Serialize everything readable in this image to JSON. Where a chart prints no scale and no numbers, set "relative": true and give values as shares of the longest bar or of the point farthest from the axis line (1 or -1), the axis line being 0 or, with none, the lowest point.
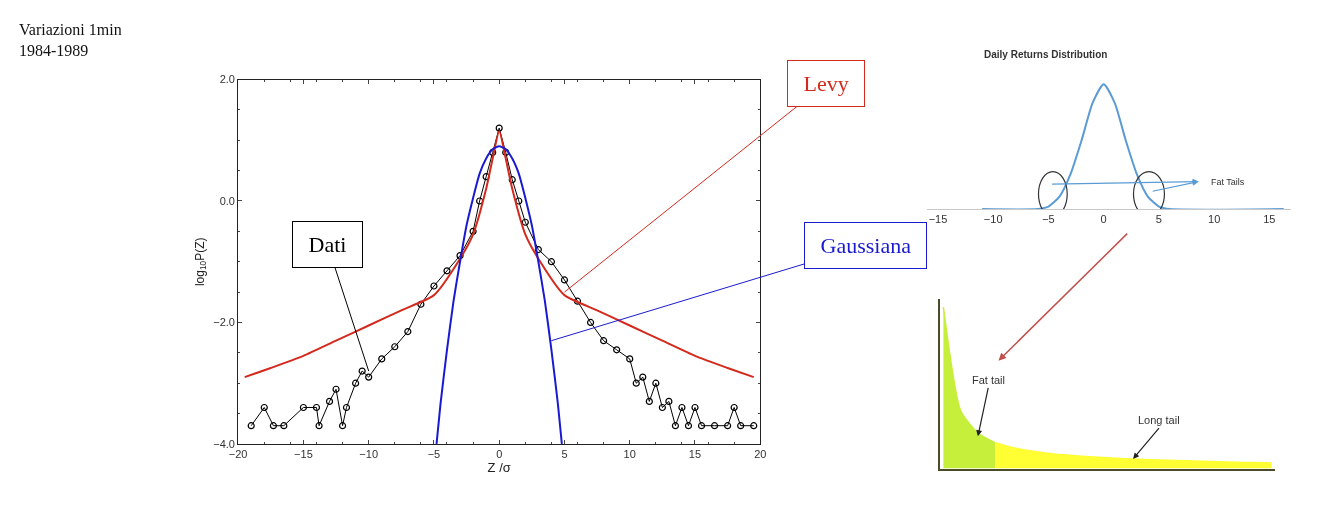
{
  "chart_data": [
    {
      "type": "line",
      "title": "Variazioni 1min\n1984-1989",
      "xlabel": "Z /σ",
      "ylabel": "log$_{10}$P(Z)",
      "xlim": [
        -20,
        20
      ],
      "ylim": [
        -4,
        2
      ],
      "xticks": [
        -20,
        -15,
        -10,
        -5,
        0,
        5,
        10,
        15,
        20
      ],
      "yticks": [
        {
          "value": -4,
          "label": "−4.0"
        },
        {
          "value": -2,
          "label": "−2.0"
        },
        {
          "value": 0,
          "label": "0.0"
        },
        {
          "value": 2,
          "label": "2.0"
        }
      ],
      "legend": false,
      "series": [
        {
          "name": "Dati",
          "type": "line",
          "marker": "circle",
          "color": "#000000",
          "x": [
            -19,
            -18,
            -17.3,
            -16.5,
            -15,
            -14,
            -13.8,
            -13,
            -12.5,
            -12,
            -11.7,
            -11,
            -10.5,
            -10,
            -9,
            -8,
            -7,
            -6,
            -5,
            -4,
            -3,
            -2,
            -1.5,
            -1,
            -0.5,
            0,
            0.5,
            1,
            1.5,
            2,
            3,
            4,
            5,
            6,
            7,
            8,
            9,
            10,
            10.5,
            11,
            11.5,
            12,
            12.5,
            13,
            13.5,
            14,
            14.5,
            15,
            15.5,
            16.5,
            17.5,
            18,
            18.5,
            19.5
          ],
          "values": [
            -3.7,
            -3.4,
            -3.7,
            -3.7,
            -3.4,
            -3.4,
            -3.7,
            -3.3,
            -3.1,
            -3.7,
            -3.4,
            -3.0,
            -2.8,
            -2.9,
            -2.6,
            -2.4,
            -2.15,
            -1.7,
            -1.4,
            -1.15,
            -0.9,
            -0.5,
            0.0,
            0.4,
            0.8,
            1.2,
            0.8,
            0.35,
            0.0,
            -0.35,
            -0.8,
            -1.0,
            -1.3,
            -1.65,
            -2.0,
            -2.3,
            -2.45,
            -2.6,
            -3.0,
            -2.9,
            -3.3,
            -3.0,
            -3.4,
            -3.3,
            -3.7,
            -3.4,
            -3.7,
            -3.4,
            -3.7,
            -3.7,
            -3.7,
            -3.4,
            -3.7,
            -3.7
          ]
        },
        {
          "name": "Levy",
          "type": "line",
          "color": "#d42a1e",
          "x": [
            -19.5,
            -17.5,
            -15,
            -12.5,
            -10,
            -7.5,
            -5,
            -3,
            -2,
            -1,
            -0.5,
            0,
            0.5,
            1,
            2,
            3,
            5,
            7.5,
            10,
            12.5,
            15,
            17.5,
            19.5
          ],
          "values": [
            -2.9,
            -2.75,
            -2.55,
            -2.3,
            -2.05,
            -1.8,
            -1.55,
            -0.95,
            -0.55,
            0.2,
            0.7,
            1.15,
            0.7,
            0.2,
            -0.55,
            -0.95,
            -1.55,
            -1.8,
            -2.05,
            -2.3,
            -2.55,
            -2.75,
            -2.9
          ]
        },
        {
          "name": "Gaussiana",
          "type": "line",
          "color": "#1a1ad0",
          "x": [
            -4.8,
            -4.5,
            -4,
            -3.5,
            -3,
            -2.5,
            -2,
            -1.5,
            -1,
            -0.5,
            0,
            0.5,
            1,
            1.5,
            2,
            2.5,
            3,
            3.5,
            4,
            4.5,
            4.8
          ],
          "values": [
            -4.0,
            -3.35,
            -2.45,
            -1.65,
            -1.0,
            -0.4,
            0.05,
            0.45,
            0.7,
            0.85,
            0.9,
            0.85,
            0.7,
            0.45,
            0.05,
            -0.4,
            -1.0,
            -1.65,
            -2.45,
            -3.35,
            -4.0
          ]
        }
      ]
    },
    {
      "type": "line",
      "title": "Daily Returns Distribution",
      "relative": true,
      "tick_labels": "x",
      "xlim": [
        -16,
        17
      ],
      "xticks": [
        -15,
        -10,
        -5,
        0,
        5,
        10,
        15
      ],
      "color": "#5b9bd5",
      "legend": false,
      "x": [
        -11,
        -6,
        -5,
        -4,
        -3,
        -2,
        -1,
        0,
        1,
        2,
        3,
        4,
        5,
        6,
        16.3
      ],
      "values": [
        0,
        0,
        0.02,
        0.1,
        0.28,
        0.55,
        0.85,
        1,
        0.85,
        0.55,
        0.28,
        0.1,
        0.02,
        0,
        0
      ],
      "annotations": [
        "Fat Tails"
      ]
    },
    {
      "type": "area",
      "relative": true,
      "tick_labels": false,
      "legend": false,
      "categories": [
        null,
        null,
        null,
        null,
        null,
        null,
        null,
        null,
        null,
        null,
        null,
        null,
        null,
        null,
        null,
        null,
        null,
        null,
        null,
        null
      ],
      "series": [
        {
          "color": "#c6ef3c",
          "values": [
            1.0,
            0.36,
            0.22,
            0.16,
            null,
            null,
            null,
            null,
            null,
            null,
            null,
            null,
            null,
            null,
            null,
            null,
            null,
            null,
            null,
            null
          ]
        },
        {
          "color": "#ffff33",
          "values": [
            null,
            null,
            null,
            0.16,
            0.13,
            0.11,
            0.095,
            0.085,
            0.077,
            0.07,
            0.064,
            0.059,
            0.055,
            0.051,
            0.048,
            0.045,
            0.042,
            0.04,
            0.037,
            0.035
          ]
        }
      ],
      "annotations": [
        "Fat tail",
        "Long tail"
      ]
    }
  ]
}
